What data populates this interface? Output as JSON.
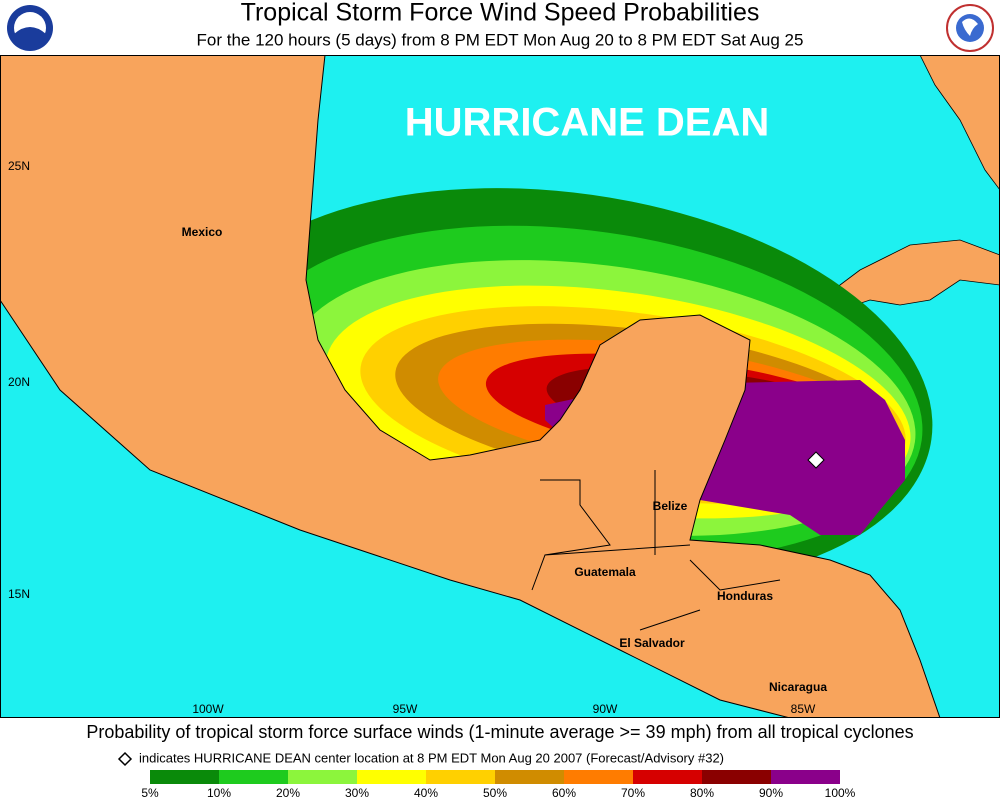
{
  "header": {
    "title": "Tropical Storm Force Wind Speed Probabilities",
    "subtitle": "For the 120 hours (5 days) from 8 PM EDT Mon Aug 20 to 8 PM EDT Sat Aug 25"
  },
  "map": {
    "storm_label": "HURRICANE DEAN",
    "lat_labels": [
      "25N",
      "20N",
      "15N"
    ],
    "lon_labels": [
      "100W",
      "95W",
      "90W",
      "85W"
    ],
    "places": [
      "Mexico",
      "Belize",
      "Guatemala",
      "Honduras",
      "El Salvador",
      "Nicaragua"
    ]
  },
  "footer": {
    "line1": "Probability of tropical storm force surface winds (1-minute average >= 39 mph) from all tropical cyclones",
    "line2": "indicates HURRICANE DEAN center location at 8 PM EDT Mon Aug 20 2007 (Forecast/Advisory #32)"
  },
  "legend": {
    "colors": [
      "#0a8a0a",
      "#1ecb1e",
      "#8cf53c",
      "#ffff00",
      "#ffd000",
      "#d08c00",
      "#ff7c00",
      "#d60000",
      "#8a0000",
      "#8a008a"
    ],
    "labels": [
      "5%",
      "10%",
      "20%",
      "30%",
      "40%",
      "50%",
      "60%",
      "70%",
      "80%",
      "90%",
      "100%"
    ]
  }
}
